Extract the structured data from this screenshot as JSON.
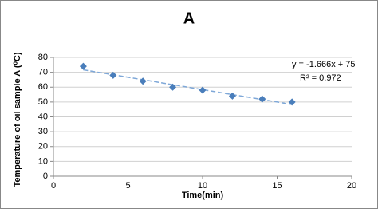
{
  "chart_data": {
    "type": "scatter",
    "title": "A",
    "x_label": "Time(min)",
    "y_label": "Temperature of oil sample A (⁰C)",
    "series": [
      {
        "color": "#4a7ebb",
        "x": [
          2,
          4,
          6,
          8,
          10,
          12,
          14,
          16
        ],
        "values": [
          74,
          68,
          64,
          60,
          58,
          54,
          52,
          50
        ]
      }
    ],
    "trendline": {
      "slope": -1.666,
      "intercept": 75,
      "color": "#7fa8d8",
      "equation": "y = -1.666x + 75",
      "r2": "R² = 0.972"
    },
    "xlim": [
      0,
      20
    ],
    "xticks": [
      0,
      5,
      10,
      15,
      20
    ],
    "ylim": [
      0,
      80
    ],
    "yticks": [
      0,
      10,
      20,
      30,
      40,
      50,
      60,
      70,
      80
    ],
    "grid": true
  }
}
